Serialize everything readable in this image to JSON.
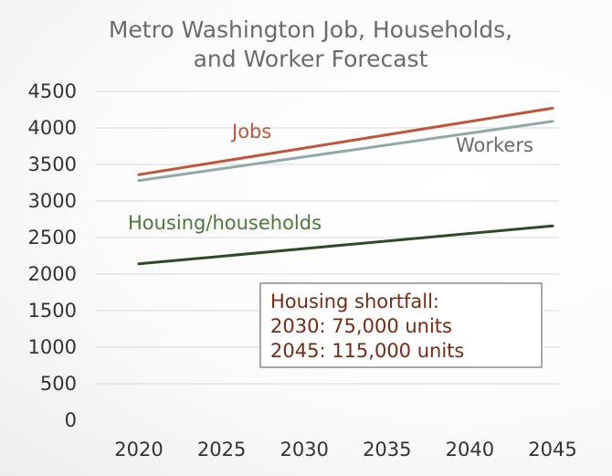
{
  "chart_data": {
    "type": "line",
    "title": [
      "Metro Washington Job, Households,",
      "and Worker Forecast"
    ],
    "xlabel": "",
    "ylabel": "",
    "x": [
      2020,
      2045
    ],
    "x_ticks": [
      "2020",
      "2025",
      "2030",
      "2035",
      "2040",
      "2045"
    ],
    "xlim": [
      2020,
      2045
    ],
    "ylim": [
      0,
      4500
    ],
    "y_ticks": [
      "0",
      "500",
      "1000",
      "1500",
      "2000",
      "2500",
      "3000",
      "3500",
      "4000",
      "4500"
    ],
    "grid": "horizontal",
    "legend": "none",
    "series": [
      {
        "name": "Jobs",
        "values": [
          3360,
          4270
        ],
        "color": "#c0553a"
      },
      {
        "name": "Workers",
        "values": [
          3280,
          4090
        ],
        "color": "#8fa8a8"
      },
      {
        "name": "Housing/households",
        "values": [
          2140,
          2660
        ],
        "color": "#2f4a26"
      }
    ],
    "series_label_colors": [
      "#c0553a",
      "#6b6b6b",
      "#4b7a3a"
    ],
    "annotation": {
      "lines": [
        "Housing shortfall:",
        "2030: 75,000 units",
        "2045: 115,000 units"
      ],
      "text_color": "#7a2a10",
      "border_color": "#8c8c8c"
    }
  }
}
